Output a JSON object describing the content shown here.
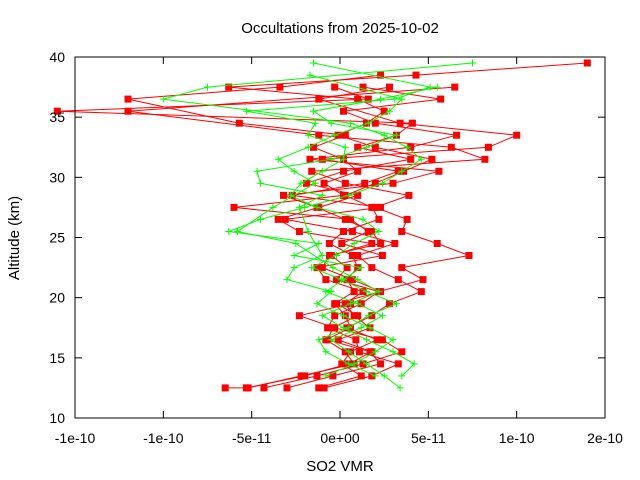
{
  "chart_data": {
    "type": "scatter",
    "title": "Occultations from 2025-10-02",
    "xlabel": "SO2 VMR",
    "ylabel": "Altitude (km)",
    "xlim": [
      -1.5e-10,
      1.5e-10
    ],
    "ylim": [
      10,
      40
    ],
    "x_ticks": [
      -1.5e-10,
      -1e-10,
      -5e-11,
      0,
      5e-11,
      1e-10,
      1.5e-10
    ],
    "x_tick_labels": [
      "-1e-10",
      "-1e-10",
      "-5e-11",
      "0e+00",
      "5e-11",
      "1e-10",
      "2e-10"
    ],
    "y_ticks": [
      10,
      15,
      20,
      25,
      30,
      35,
      40
    ],
    "y_tick_labels": [
      "10",
      "15",
      "20",
      "25",
      "30",
      "35",
      "40"
    ],
    "grid": false,
    "legend": "none",
    "series": [
      {
        "marker": "square",
        "color": "#ff0000",
        "profiles": [
          [
            [
              -6.5e-11,
              12.5
            ],
            [
              -5.2e-11,
              12.5
            ],
            [
              -2.2e-11,
              13.5
            ],
            [
              8e-12,
              14.5
            ],
            [
              3e-12,
              15.5
            ],
            [
              -8e-12,
              16.5
            ],
            [
              6e-12,
              17.5
            ],
            [
              3e-12,
              18.5
            ],
            [
              -3e-12,
              19.5
            ],
            [
              8e-12,
              20.5
            ],
            [
              4e-12,
              21.5
            ],
            [
              1e-11,
              22.5
            ],
            [
              7e-12,
              23.5
            ],
            [
              -6e-12,
              24.5
            ],
            [
              2e-12,
              25.5
            ],
            [
              2.2e-11,
              26.5
            ],
            [
              1.8e-11,
              27.5
            ],
            [
              3e-12,
              28.5
            ],
            [
              2e-11,
              29.5
            ],
            [
              3.6e-11,
              30.5
            ],
            [
              5.2e-11,
              31.5
            ],
            [
              2e-11,
              32.5
            ],
            [
              -1e-12,
              33.5
            ],
            [
              1.5e-11,
              34.5
            ],
            [
              2.5e-11,
              35.5
            ],
            [
              1e-11,
              36.5
            ],
            [
              -6.3e-11,
              37.5
            ],
            [
              4.3e-11,
              38.5
            ],
            [
              1.4e-10,
              39.5
            ]
          ],
          [
            [
              -5.3e-11,
              12.5
            ],
            [
              -2e-11,
              13.5
            ],
            [
              5e-12,
              14.5
            ],
            [
              1.8e-11,
              15.5
            ],
            [
              -1e-12,
              16.5
            ],
            [
              1.7e-11,
              17.5
            ],
            [
              8e-12,
              18.5
            ],
            [
              3e-12,
              19.5
            ],
            [
              1.3e-11,
              20.5
            ],
            [
              -8e-12,
              21.5
            ],
            [
              -1.3e-11,
              22.5
            ],
            [
              2.4e-11,
              23.5
            ],
            [
              1e-12,
              24.5
            ],
            [
              1.6e-11,
              25.5
            ],
            [
              6e-12,
              26.5
            ],
            [
              -6e-11,
              27.5
            ],
            [
              2e-12,
              28.5
            ],
            [
              -9e-12,
              29.5
            ],
            [
              1e-11,
              30.5
            ],
            [
              2e-12,
              31.5
            ],
            [
              -1.5e-11,
              32.5
            ],
            [
              3e-12,
              33.5
            ],
            [
              -5.7e-11,
              34.5
            ],
            [
              -1.2e-10,
              36.5
            ],
            [
              -3.4e-11,
              37.5
            ],
            [
              2.3e-11,
              38.5
            ]
          ],
          [
            [
              -4.3e-11,
              12.5
            ],
            [
              -1.3e-11,
              13.5
            ],
            [
              1.3e-11,
              14.5
            ],
            [
              3.5e-11,
              15.5
            ],
            [
              2.4e-11,
              16.5
            ],
            [
              -3e-12,
              17.5
            ],
            [
              -2.3e-11,
              18.5
            ],
            [
              6e-12,
              19.5
            ],
            [
              2.2e-11,
              20.5
            ],
            [
              4.7e-11,
              21.5
            ],
            [
              3.5e-11,
              22.5
            ],
            [
              7.3e-11,
              23.5
            ],
            [
              5.5e-11,
              24.5
            ],
            [
              3.5e-11,
              25.5
            ],
            [
              3.8e-11,
              26.5
            ],
            [
              2e-11,
              27.5
            ],
            [
              3.9e-11,
              28.5
            ],
            [
              3e-12,
              29.5
            ],
            [
              -1.6e-11,
              30.5
            ],
            [
              8.2e-11,
              31.5
            ],
            [
              6.3e-11,
              32.5
            ],
            [
              -1.2e-11,
              33.5
            ],
            [
              -1.2e-10,
              35.5
            ],
            [
              6.5e-11,
              37.5
            ]
          ],
          [
            [
              -3e-11,
              12.5
            ],
            [
              -4e-12,
              13.5
            ],
            [
              2.3e-11,
              14.5
            ],
            [
              1.7e-11,
              15.5
            ],
            [
              -7e-12,
              16.5
            ],
            [
              -4e-12,
              17.5
            ],
            [
              1e-11,
              18.5
            ],
            [
              -2e-12,
              19.5
            ],
            [
              2.3e-11,
              20.5
            ],
            [
              7e-12,
              21.5
            ],
            [
              -1e-11,
              22.5
            ],
            [
              -6e-12,
              23.5
            ],
            [
              2.3e-11,
              24.5
            ],
            [
              1.8e-11,
              25.5
            ],
            [
              3e-12,
              26.5
            ],
            [
              -1.3e-11,
              27.5
            ],
            [
              -3.2e-11,
              28.5
            ],
            [
              3e-11,
              29.5
            ],
            [
              5.6e-11,
              30.5
            ],
            [
              -1.7e-11,
              31.5
            ],
            [
              4e-11,
              32.5
            ],
            [
              6.6e-11,
              33.5
            ],
            [
              2e-11,
              34.5
            ],
            [
              2e-12,
              35.5
            ],
            [
              5.7e-11,
              36.5
            ],
            [
              1.3e-11,
              37.5
            ]
          ],
          [
            [
              -1.2e-11,
              12.5
            ],
            [
              1.2e-11,
              13.5
            ],
            [
              1e-12,
              14.5
            ],
            [
              6e-12,
              15.5
            ],
            [
              2.1e-11,
              16.5
            ],
            [
              4e-12,
              17.5
            ],
            [
              1.8e-11,
              18.5
            ],
            [
              2.8e-11,
              19.5
            ],
            [
              4.6e-11,
              20.5
            ],
            [
              3.3e-11,
              21.5
            ],
            [
              1.8e-11,
              22.5
            ],
            [
              1e-11,
              23.5
            ],
            [
              3.1e-11,
              24.5
            ],
            [
              7e-12,
              25.5
            ],
            [
              -3.1e-11,
              26.5
            ],
            [
              2.3e-11,
              27.5
            ],
            [
              -2.7e-11,
              28.5
            ],
            [
              1.4e-11,
              29.5
            ],
            [
              3.3e-11,
              30.5
            ],
            [
              -1e-11,
              31.5
            ],
            [
              8.4e-11,
              32.5
            ],
            [
              1e-10,
              33.5
            ],
            [
              3.4e-11,
              34.5
            ],
            [
              -1.2e-11,
              36.5
            ],
            [
              2.8e-11,
              37.5
            ]
          ],
          [
            [
              -9e-12,
              12.5
            ],
            [
              1.8e-11,
              13.5
            ],
            [
              3.3e-11,
              14.5
            ],
            [
              1.1e-11,
              15.5
            ],
            [
              9e-12,
              16.5
            ],
            [
              -7e-12,
              17.5
            ],
            [
              -3e-12,
              18.5
            ],
            [
              1.2e-11,
              19.5
            ],
            [
              2.2e-11,
              20.5
            ],
            [
              -2e-12,
              21.5
            ],
            [
              4e-12,
              22.5
            ],
            [
              -5e-12,
              23.5
            ],
            [
              1.8e-11,
              24.5
            ],
            [
              -2.3e-11,
              25.5
            ],
            [
              -3.5e-11,
              26.5
            ],
            [
              -1.2e-11,
              27.5
            ],
            [
              1e-11,
              28.5
            ],
            [
              -1.9e-11,
              29.5
            ],
            [
              2e-12,
              30.5
            ],
            [
              4e-11,
              31.5
            ],
            [
              1e-11,
              32.5
            ],
            [
              3.2e-11,
              33.5
            ],
            [
              4.1e-11,
              34.5
            ],
            [
              -1.6e-10,
              35.5
            ],
            [
              1.6e-11,
              36.5
            ],
            [
              -3e-12,
              37.5
            ]
          ]
        ]
      },
      {
        "marker": "plus",
        "color": "#00ff00",
        "profiles": [
          [
            [
              3.4e-11,
              12.5
            ],
            [
              2.5e-11,
              13.5
            ],
            [
              1.5e-11,
              14.5
            ],
            [
              5e-12,
              15.5
            ],
            [
              -5e-12,
              16.5
            ],
            [
              1.2e-11,
              17.5
            ],
            [
              2.4e-11,
              18.5
            ],
            [
              1e-11,
              19.5
            ],
            [
              -8e-12,
              20.5
            ],
            [
              2e-12,
              21.5
            ],
            [
              1.2e-11,
              22.5
            ],
            [
              -2.6e-11,
              23.5
            ],
            [
              -1.2e-11,
              24.5
            ],
            [
              -6.3e-11,
              25.5
            ],
            [
              -4.5e-11,
              26.5
            ],
            [
              -2e-11,
              27.5
            ],
            [
              5e-12,
              28.5
            ],
            [
              2.4e-11,
              29.5
            ],
            [
              3.5e-11,
              30.5
            ],
            [
              4.6e-11,
              31.5
            ],
            [
              3.8e-11,
              32.5
            ],
            [
              2.5e-11,
              33.5
            ],
            [
              6e-12,
              34.5
            ],
            [
              -1e-10,
              36.5
            ],
            [
              -7.5e-11,
              37.5
            ],
            [
              7.5e-11,
              39.5
            ]
          ],
          [
            [
              3.5e-11,
              13.5
            ],
            [
              4.2e-11,
              14.5
            ],
            [
              3e-11,
              15.5
            ],
            [
              1.5e-11,
              16.5
            ],
            [
              2e-12,
              17.5
            ],
            [
              -1e-11,
              18.5
            ],
            [
              6e-12,
              19.5
            ],
            [
              2.2e-11,
              20.5
            ],
            [
              1e-11,
              21.5
            ],
            [
              -4e-12,
              22.5
            ],
            [
              -2.5e-11,
              24.5
            ],
            [
              -5.8e-11,
              25.5
            ],
            [
              -3.8e-11,
              27.5
            ],
            [
              -1.4e-11,
              29.5
            ],
            [
              -2.6e-11,
              30.5
            ],
            [
              -3.5e-11,
              31.5
            ],
            [
              -1.8e-11,
              32.5
            ],
            [
              -3e-12,
              33.5
            ],
            [
              1.6e-11,
              34.5
            ],
            [
              2.8e-11,
              35.5
            ],
            [
              3.5e-11,
              36.5
            ],
            [
              -1.7e-11,
              38.5
            ]
          ],
          [
            [
              -8e-12,
              13.5
            ],
            [
              8e-12,
              14.5
            ],
            [
              2e-11,
              15.5
            ],
            [
              3e-11,
              16.5
            ],
            [
              1.7e-11,
              17.5
            ],
            [
              2e-12,
              18.5
            ],
            [
              -1.3e-11,
              19.5
            ],
            [
              -5e-12,
              20.5
            ],
            [
              -3e-11,
              21.5
            ],
            [
              -2.6e-11,
              22.5
            ],
            [
              -1e-11,
              23.5
            ],
            [
              -1.8e-11,
              25.5
            ],
            [
              -2.3e-11,
              27.5
            ],
            [
              -1e-11,
              28.5
            ],
            [
              -4.5e-11,
              29.5
            ],
            [
              -4.7e-11,
              30.5
            ],
            [
              -5e-12,
              31.5
            ],
            [
              1.5e-11,
              32.5
            ],
            [
              3.2e-11,
              33.5
            ],
            [
              -5e-12,
              34.5
            ],
            [
              -1.5e-11,
              35.5
            ],
            [
              2.3e-11,
              36.5
            ],
            [
              5.5e-11,
              37.5
            ]
          ],
          [
            [
              2e-11,
              13.5
            ],
            [
              5e-12,
              14.5
            ],
            [
              -8e-12,
              15.5
            ],
            [
              -1.2e-11,
              16.5
            ],
            [
              5e-12,
              17.5
            ],
            [
              1.6e-11,
              18.5
            ],
            [
              3.2e-11,
              19.5
            ],
            [
              1.5e-11,
              20.5
            ],
            [
              1e-12,
              21.5
            ],
            [
              -1.6e-11,
              22.5
            ],
            [
              -2e-12,
              23.5
            ],
            [
              8e-12,
              24.5
            ],
            [
              2.2e-11,
              25.5
            ],
            [
              1.3e-11,
              26.5
            ],
            [
              -1.3e-11,
              27.5
            ],
            [
              -2.8e-11,
              28.5
            ],
            [
              -2.2e-11,
              29.5
            ],
            [
              -1e-11,
              30.5
            ],
            [
              2e-12,
              31.5
            ],
            [
              3e-12,
              32.5
            ],
            [
              -1.8e-11,
              33.5
            ],
            [
              -1.4e-11,
              34.5
            ],
            [
              -5.3e-11,
              35.5
            ],
            [
              3.1e-11,
              36.5
            ],
            [
              5.1e-11,
              37.5
            ],
            [
              -1.5e-11,
              39.5
            ]
          ]
        ]
      }
    ]
  }
}
